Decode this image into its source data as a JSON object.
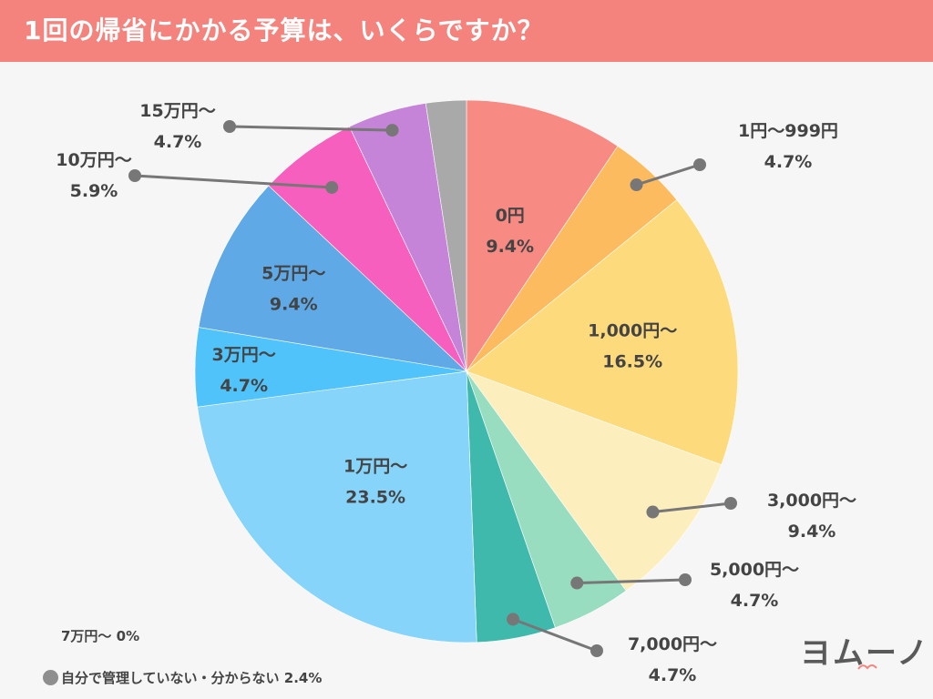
{
  "header": {
    "title": "1回の帰省にかかる予算は、いくらですか？"
  },
  "chart_data": {
    "type": "pie",
    "title": "1回の帰省にかかる予算は、いくらですか？",
    "slices": [
      {
        "label": "0円",
        "value_label": "9.4%",
        "value": 9.4,
        "color": "#f88a84"
      },
      {
        "label": "1円〜999円",
        "value_label": "4.7%",
        "value": 4.7,
        "color": "#fdbb60"
      },
      {
        "label": "1,000円〜",
        "value_label": "16.5%",
        "value": 16.5,
        "color": "#fddb7c"
      },
      {
        "label": "3,000円〜",
        "value_label": "9.4%",
        "value": 9.4,
        "color": "#fdeebd"
      },
      {
        "label": "5,000円〜",
        "value_label": "4.7%",
        "value": 4.7,
        "color": "#98ddbf"
      },
      {
        "label": "7,000円〜",
        "value_label": "4.7%",
        "value": 4.7,
        "color": "#40b9ad"
      },
      {
        "label": "1万円〜",
        "value_label": "23.5%",
        "value": 23.5,
        "color": "#87d4fb"
      },
      {
        "label": "3万円〜",
        "value_label": "4.7%",
        "value": 4.7,
        "color": "#51c3fb"
      },
      {
        "label": "5万円〜",
        "value_label": "9.4%",
        "value": 9.4,
        "color": "#5ea9e6"
      },
      {
        "label": "10万円〜",
        "value_label": "5.9%",
        "value": 5.9,
        "color": "#f75fbe"
      },
      {
        "label": "15万円〜",
        "value_label": "4.7%",
        "value": 4.7,
        "color": "#c684d8"
      },
      {
        "label": "自分で管理していない・分からない",
        "value_label": "2.4%",
        "value": 2.4,
        "color": "#a9a9a9"
      }
    ]
  },
  "notes": {
    "seven_man": "7万円〜 0%",
    "other": "自分で管理していない・分からない 2.4%"
  },
  "logo": {
    "text": "ヨムーノ"
  },
  "colors": {
    "header": "#f4837d",
    "leader": "#777777",
    "label": "#444444"
  }
}
